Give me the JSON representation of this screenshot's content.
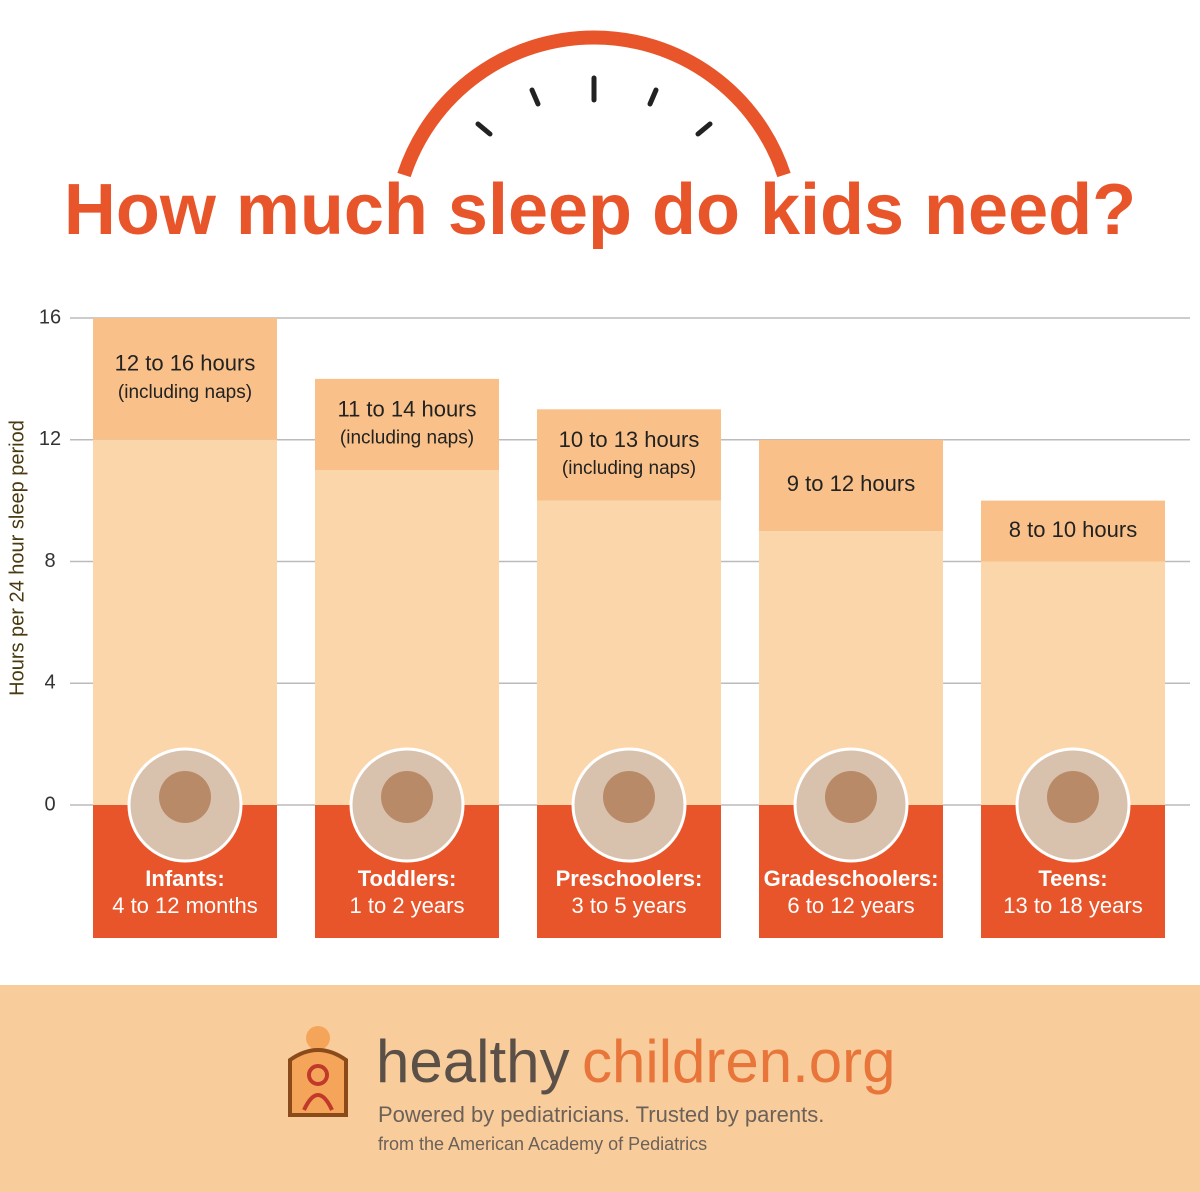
{
  "chart_data": {
    "type": "range-bar",
    "title": "How much sleep do kids need?",
    "y_label": "Hours per 24 hour sleep period",
    "ylim": [
      0,
      16
    ],
    "yticks": [
      0,
      4,
      8,
      12,
      16
    ],
    "grid": true,
    "base_color": "#fcd6ab",
    "range_color": "#f9c189",
    "label_color": "#e8552a",
    "categories": [
      {
        "name": "Infants:",
        "ages": "4 to 12 months",
        "low": 12,
        "high": 16,
        "range_label": "12 to 16 hours",
        "note": "(including naps)"
      },
      {
        "name": "Toddlers:",
        "ages": "1 to 2 years",
        "low": 11,
        "high": 14,
        "range_label": "11 to 14 hours",
        "note": "(including naps)"
      },
      {
        "name": "Preschoolers:",
        "ages": "3 to 5 years",
        "low": 10,
        "high": 13,
        "range_label": "10 to 13 hours",
        "note": "(including naps)"
      },
      {
        "name": "Gradeschoolers:",
        "ages": "6 to 12 years",
        "low": 9,
        "high": 12,
        "range_label": "9 to 12 hours"
      },
      {
        "name": "Teens:",
        "ages": "13 to 18 years",
        "low": 8,
        "high": 10,
        "range_label": "8 to 10 hours"
      }
    ]
  },
  "footer": {
    "brand_part1": "healthy",
    "brand_part2": "children.org",
    "tagline": "Powered by pediatricians. Trusted by parents.",
    "source": "from the American Academy of Pediatrics"
  }
}
